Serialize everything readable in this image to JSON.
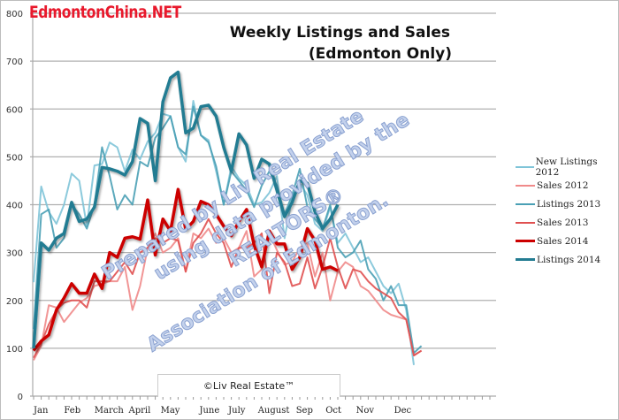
{
  "logo": "EdmontonChina.NET",
  "watermark": [
    "Prepared by Liv Real Estate",
    "using data provided by the",
    "REALTORS®",
    "Association of Edmonton."
  ],
  "credit": "©Liv Real Estate™",
  "chart_data": {
    "type": "line",
    "title": "Weekly Listings and Sales",
    "subtitle": "(Edmonton Only)",
    "xlabel": "",
    "ylabel": "",
    "ylim": [
      0,
      800
    ],
    "yticks": [
      "0",
      "100",
      "200",
      "300",
      "400",
      "500",
      "600",
      "700",
      "800"
    ],
    "x_unit": "week of year",
    "month_labels": [
      "Jan",
      "Feb",
      "March",
      "April",
      "May",
      "June",
      "July",
      "August",
      "Sep",
      "Oct",
      "Nov",
      "Dec"
    ],
    "month_start_week": [
      0,
      4,
      8,
      12.5,
      16.7,
      21.8,
      25.6,
      29.5,
      34.5,
      38.4,
      42.4,
      47.4
    ],
    "grid": "horizontal",
    "legend": "right",
    "series": [
      {
        "name": "New Listings 2012",
        "color": "#7fc4d8",
        "width": 2,
        "values": [
          238,
          438,
          385,
          360,
          400,
          465,
          450,
          355,
          482,
          485,
          530,
          520,
          470,
          515,
          495,
          532,
          550,
          590,
          585,
          520,
          490,
          617,
          545,
          535,
          470,
          400,
          480,
          455,
          440,
          400,
          405,
          425,
          460,
          330,
          415,
          445,
          420,
          360,
          345,
          395,
          320,
          340,
          310,
          280,
          290,
          260,
          230,
          215,
          235,
          180,
          65
        ]
      },
      {
        "name": "Sales 2012",
        "color": "#f08a8a",
        "width": 2,
        "values": [
          75,
          105,
          190,
          185,
          155,
          175,
          195,
          205,
          230,
          235,
          240,
          240,
          270,
          180,
          230,
          310,
          340,
          300,
          310,
          330,
          260,
          340,
          330,
          350,
          320,
          330,
          300,
          310,
          345,
          250,
          265,
          340,
          305,
          275,
          280,
          310,
          320,
          250,
          300,
          200,
          260,
          280,
          270,
          230,
          220,
          200,
          180,
          170,
          165,
          160,
          85,
          95
        ]
      },
      {
        "name": "Listings 2013",
        "color": "#4aa0b5",
        "width": 2,
        "values": [
          140,
          380,
          390,
          310,
          330,
          400,
          380,
          350,
          400,
          520,
          460,
          390,
          420,
          400,
          490,
          480,
          540,
          560,
          585,
          520,
          505,
          605,
          545,
          530,
          480,
          400,
          470,
          450,
          430,
          395,
          440,
          470,
          440,
          380,
          420,
          475,
          395,
          370,
          350,
          400,
          310,
          290,
          300,
          325,
          265,
          245,
          200,
          230,
          190,
          190,
          90,
          105
        ]
      },
      {
        "name": "Sales 2013",
        "color": "#e05050",
        "width": 2,
        "values": [
          80,
          110,
          150,
          180,
          195,
          200,
          200,
          185,
          240,
          240,
          240,
          260,
          280,
          255,
          300,
          310,
          330,
          320,
          330,
          325,
          260,
          320,
          340,
          370,
          340,
          320,
          270,
          310,
          310,
          320,
          340,
          215,
          300,
          280,
          230,
          235,
          290,
          225,
          270,
          330,
          270,
          225,
          265,
          260,
          240,
          225,
          215,
          205,
          175,
          160,
          85,
          95
        ]
      },
      {
        "name": "Sales 2014",
        "color": "#cc0000",
        "width": 3.5,
        "values": [
          95,
          115,
          128,
          180,
          205,
          235,
          215,
          215,
          255,
          225,
          300,
          290,
          330,
          333,
          328,
          410,
          295,
          370,
          345,
          432,
          348,
          365,
          407,
          400,
          380,
          355,
          335,
          365,
          390,
          315,
          270,
          345,
          318,
          318,
          265,
          290,
          350,
          325,
          265,
          270,
          262
        ]
      },
      {
        "name": "Listings 2014",
        "color": "#237c92",
        "width": 3.5,
        "values": [
          100,
          320,
          305,
          330,
          340,
          405,
          365,
          370,
          395,
          478,
          475,
          470,
          462,
          490,
          580,
          570,
          450,
          615,
          665,
          677,
          550,
          560,
          605,
          608,
          585,
          520,
          470,
          548,
          525,
          455,
          495,
          485,
          430,
          375,
          405,
          450,
          445,
          385,
          350,
          370,
          400
        ]
      }
    ]
  }
}
